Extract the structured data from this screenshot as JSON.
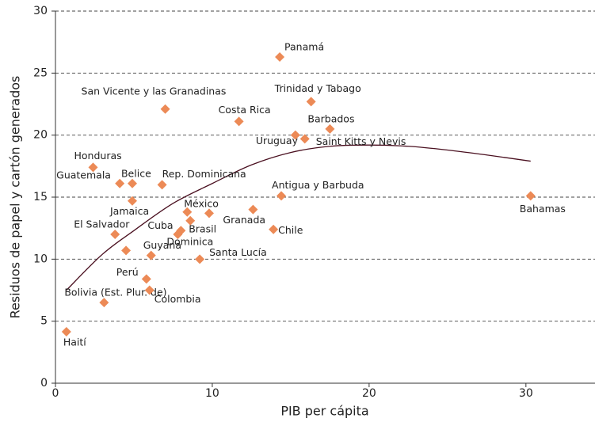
{
  "chart_data": {
    "type": "scatter",
    "x_label": "PIB per cápita",
    "y_label": "Residuos de papel y cartón generados",
    "xlim": [
      0,
      34
    ],
    "ylim": [
      0,
      30
    ],
    "xticks": [
      0,
      10,
      20,
      30
    ],
    "yticks": [
      0,
      5,
      10,
      15,
      20,
      25,
      30
    ],
    "grid": true,
    "color": "#ec8a56",
    "points": [
      {
        "name": "Haití",
        "x": 0.7,
        "y": 4.15
      },
      {
        "name": "Bolivia (Est. Plur. de)",
        "x": 3.1,
        "y": 6.5
      },
      {
        "name": "Colombia",
        "x": 6.0,
        "y": 7.5
      },
      {
        "name": "Perú",
        "x": 5.8,
        "y": 8.4
      },
      {
        "name": "Guyana",
        "x": 6.1,
        "y": 10.3
      },
      {
        "name": "El Salvador",
        "x": 3.8,
        "y": 12.0
      },
      {
        "name": null,
        "x": 4.5,
        "y": 10.7
      },
      {
        "name": "Guatemala",
        "x": 4.1,
        "y": 16.1
      },
      {
        "name": "Belice",
        "x": 4.9,
        "y": 16.1
      },
      {
        "name": "Jamaica",
        "x": 4.9,
        "y": 14.7
      },
      {
        "name": "Honduras",
        "x": 2.4,
        "y": 17.4
      },
      {
        "name": "Rep. Dominicana",
        "x": 6.8,
        "y": 16.0
      },
      {
        "name": "San Vicente y las Granadinas",
        "x": 7.0,
        "y": 22.1
      },
      {
        "name": "México",
        "x": 8.4,
        "y": 13.8
      },
      {
        "name": "Brasil",
        "x": 8.6,
        "y": 13.1
      },
      {
        "name": "Cuba",
        "x": 8.0,
        "y": 12.3
      },
      {
        "name": "Dominica",
        "x": 7.8,
        "y": 12.0
      },
      {
        "name": null,
        "x": 9.8,
        "y": 13.7
      },
      {
        "name": "Santa Lucía",
        "x": 9.2,
        "y": 10.0
      },
      {
        "name": "Granada",
        "x": 12.6,
        "y": 14.0
      },
      {
        "name": "Chile",
        "x": 13.9,
        "y": 12.4
      },
      {
        "name": "Costa Rica",
        "x": 11.7,
        "y": 21.1
      },
      {
        "name": "Panamá",
        "x": 14.3,
        "y": 26.3
      },
      {
        "name": "Uruguay",
        "x": 15.3,
        "y": 20.0
      },
      {
        "name": "Saint Kitts y Nevis",
        "x": 15.9,
        "y": 19.7
      },
      {
        "name": "Barbados",
        "x": 17.5,
        "y": 20.5
      },
      {
        "name": "Trinidad y Tabago",
        "x": 16.3,
        "y": 22.7
      },
      {
        "name": "Antigua y Barbuda",
        "x": 14.4,
        "y": 15.1
      },
      {
        "name": "Bahamas",
        "x": 30.3,
        "y": 15.1
      }
    ],
    "trend": {
      "x": [
        0.7,
        3,
        5,
        7.5,
        10,
        12.5,
        15,
        17.5,
        20,
        22.5,
        25,
        27.5,
        30.3
      ],
      "y": [
        7.5,
        10.4,
        12.3,
        14.5,
        16.1,
        17.6,
        18.6,
        19.1,
        19.2,
        19.1,
        18.8,
        18.4,
        17.9
      ]
    }
  }
}
